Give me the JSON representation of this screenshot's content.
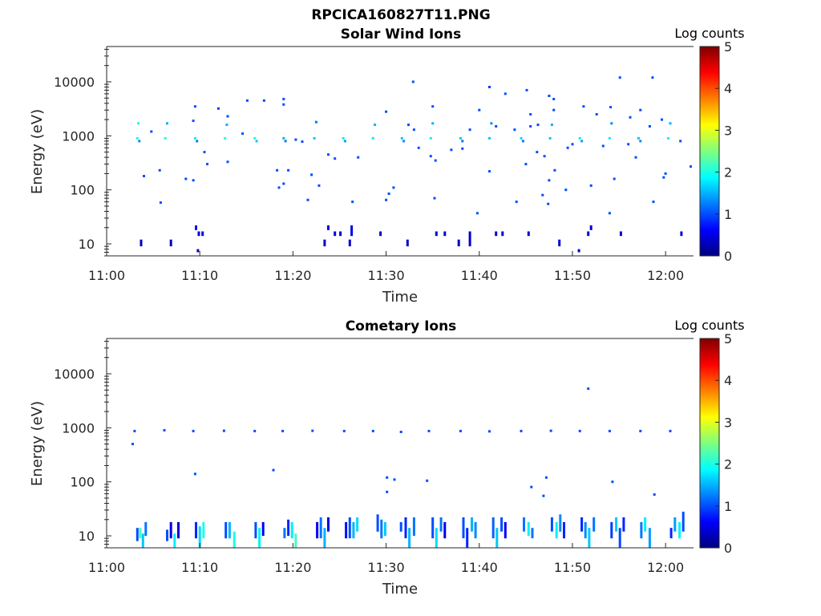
{
  "figure_title": "RPCICA160827T11.PNG",
  "colormap": [
    "#00007f",
    "#0000ff",
    "#007fff",
    "#00ffff",
    "#7fff7f",
    "#ffff00",
    "#ff7f00",
    "#ff0000",
    "#7f0000"
  ],
  "chart_data": [
    {
      "type": "heatmap",
      "title": "Solar Wind Ions",
      "xlabel": "Time",
      "ylabel": "Energy (eV)",
      "colorbar_label": "Log counts",
      "xticks": [
        "11:00",
        "11:10",
        "11:20",
        "11:30",
        "11:40",
        "11:50",
        "12:00"
      ],
      "x_range_minutes": [
        0,
        63
      ],
      "yscale": "log",
      "yticks": [
        "10",
        "100",
        "1000",
        "10000"
      ],
      "ylim": [
        6,
        45000
      ],
      "clim": [
        0,
        5
      ],
      "cticks": [
        "0",
        "1",
        "2",
        "3",
        "4",
        "5"
      ],
      "points": [
        [
          3.3,
          900,
          2.0
        ],
        [
          3.5,
          800,
          1.3
        ],
        [
          3.4,
          1700,
          2.0
        ],
        [
          6.3,
          900,
          2.0
        ],
        [
          6.5,
          1700,
          1.5
        ],
        [
          9.5,
          900,
          1.8
        ],
        [
          9.7,
          800,
          1.2
        ],
        [
          12.7,
          900,
          2.0
        ],
        [
          12.9,
          1600,
          1.5
        ],
        [
          15.9,
          900,
          2.0
        ],
        [
          16.1,
          800,
          1.6
        ],
        [
          19.0,
          900,
          1.5
        ],
        [
          19.2,
          800,
          1.2
        ],
        [
          22.3,
          900,
          1.6
        ],
        [
          22.5,
          1800,
          1.2
        ],
        [
          25.4,
          900,
          1.8
        ],
        [
          25.6,
          800,
          1.4
        ],
        [
          28.6,
          900,
          1.8
        ],
        [
          28.8,
          1600,
          1.5
        ],
        [
          31.7,
          900,
          1.6
        ],
        [
          31.9,
          800,
          1.3
        ],
        [
          34.8,
          900,
          1.8
        ],
        [
          35.0,
          1700,
          1.5
        ],
        [
          38.0,
          900,
          1.6
        ],
        [
          38.2,
          800,
          1.2
        ],
        [
          41.1,
          900,
          1.6
        ],
        [
          41.3,
          1700,
          1.3
        ],
        [
          44.5,
          900,
          1.7
        ],
        [
          44.7,
          800,
          1.2
        ],
        [
          47.6,
          900,
          1.6
        ],
        [
          47.8,
          1600,
          1.5
        ],
        [
          50.8,
          900,
          1.8
        ],
        [
          51.0,
          800,
          1.4
        ],
        [
          54.0,
          900,
          1.8
        ],
        [
          54.2,
          1700,
          1.3
        ],
        [
          57.1,
          900,
          1.6
        ],
        [
          57.3,
          800,
          1.3
        ],
        [
          60.3,
          900,
          1.8
        ],
        [
          60.5,
          1700,
          1.5
        ],
        [
          9.5,
          3500,
          1.0
        ],
        [
          9.3,
          1900,
          1.0
        ],
        [
          12.0,
          3200,
          0.9
        ],
        [
          15.1,
          4500,
          1.0
        ],
        [
          16.9,
          4500,
          1.0
        ],
        [
          19.0,
          4800,
          1.0
        ],
        [
          19.0,
          3800,
          1.0
        ],
        [
          30.0,
          2800,
          1.0
        ],
        [
          32.9,
          10000,
          1.0
        ],
        [
          35.0,
          3500,
          1.0
        ],
        [
          41.1,
          8000,
          0.9
        ],
        [
          45.1,
          7000,
          1.0
        ],
        [
          47.5,
          5500,
          1.0
        ],
        [
          48.0,
          4800,
          1.0
        ],
        [
          55.1,
          12000,
          1.0
        ],
        [
          57.3,
          3000,
          1.0
        ],
        [
          58.6,
          12000,
          1.0
        ],
        [
          59.6,
          2000,
          1.0
        ],
        [
          4.0,
          180,
          1.0
        ],
        [
          4.8,
          1200,
          1.0
        ],
        [
          5.7,
          230,
          1.0
        ],
        [
          5.8,
          58,
          1.0
        ],
        [
          8.5,
          160,
          1.0
        ],
        [
          9.3,
          150,
          1.0
        ],
        [
          10.5,
          500,
          1.0
        ],
        [
          10.8,
          300,
          1.0
        ],
        [
          13.0,
          330,
          1.0
        ],
        [
          13.0,
          2300,
          1.0
        ],
        [
          14.6,
          1100,
          1.0
        ],
        [
          18.3,
          230,
          1.0
        ],
        [
          18.5,
          110,
          1.0
        ],
        [
          19.0,
          130,
          1.0
        ],
        [
          19.5,
          230,
          1.0
        ],
        [
          20.3,
          850,
          1.0
        ],
        [
          21.0,
          780,
          1.0
        ],
        [
          21.6,
          65,
          1.0
        ],
        [
          22.0,
          190,
          1.0
        ],
        [
          22.8,
          120,
          1.0
        ],
        [
          23.8,
          450,
          1.0
        ],
        [
          24.5,
          380,
          1.0
        ],
        [
          26.4,
          60,
          1.0
        ],
        [
          27.0,
          400,
          1.0
        ],
        [
          30.0,
          65,
          1.0
        ],
        [
          30.3,
          85,
          1.0
        ],
        [
          30.8,
          110,
          1.0
        ],
        [
          32.4,
          1600,
          1.0
        ],
        [
          33.0,
          1300,
          1.0
        ],
        [
          33.5,
          600,
          1.0
        ],
        [
          34.8,
          420,
          1.0
        ],
        [
          35.3,
          350,
          1.0
        ],
        [
          35.2,
          70,
          1.0
        ],
        [
          37.0,
          550,
          1.0
        ],
        [
          38.2,
          580,
          1.0
        ],
        [
          39.0,
          1300,
          1.0
        ],
        [
          40.0,
          3000,
          1.0
        ],
        [
          39.8,
          37,
          1.0
        ],
        [
          41.1,
          220,
          1.0
        ],
        [
          41.8,
          1500,
          1.0
        ],
        [
          42.8,
          6000,
          1.0
        ],
        [
          43.8,
          1300,
          1.0
        ],
        [
          44.0,
          60,
          1.0
        ],
        [
          45.0,
          300,
          1.0
        ],
        [
          45.5,
          2500,
          1.0
        ],
        [
          45.5,
          1500,
          1.0
        ],
        [
          46.3,
          1600,
          1.0
        ],
        [
          46.2,
          500,
          1.0
        ],
        [
          46.8,
          80,
          1.0
        ],
        [
          47.0,
          420,
          1.0
        ],
        [
          47.4,
          55,
          1.0
        ],
        [
          47.5,
          150,
          1.0
        ],
        [
          48.0,
          3000,
          1.0
        ],
        [
          48.1,
          230,
          1.0
        ],
        [
          49.3,
          100,
          1.0
        ],
        [
          49.5,
          600,
          1.0
        ],
        [
          50.0,
          700,
          1.0
        ],
        [
          51.2,
          3500,
          1.0
        ],
        [
          52.0,
          120,
          1.0
        ],
        [
          52.6,
          2500,
          1.0
        ],
        [
          53.3,
          650,
          1.0
        ],
        [
          54.1,
          3400,
          1.0
        ],
        [
          54.0,
          37,
          1.0
        ],
        [
          54.5,
          160,
          1.0
        ],
        [
          56.0,
          700,
          1.0
        ],
        [
          56.2,
          2200,
          1.0
        ],
        [
          56.8,
          400,
          1.0
        ],
        [
          58.3,
          1500,
          1.0
        ],
        [
          58.7,
          60,
          1.0
        ],
        [
          59.8,
          170,
          1.0
        ],
        [
          60.0,
          200,
          1.0
        ],
        [
          61.6,
          800,
          1.0
        ],
        [
          62.7,
          270,
          1.0
        ]
      ],
      "bars": [
        [
          3.7,
          9,
          12,
          0.3
        ],
        [
          6.9,
          9,
          12,
          0.3
        ],
        [
          9.8,
          7,
          8,
          0.3
        ],
        [
          9.6,
          18,
          22,
          0.7
        ],
        [
          9.9,
          14,
          17,
          0.5
        ],
        [
          10.3,
          14,
          17,
          0.5
        ],
        [
          23.4,
          9,
          12,
          0.4
        ],
        [
          23.8,
          18,
          22,
          0.5
        ],
        [
          24.5,
          14,
          17,
          0.5
        ],
        [
          25.1,
          14,
          17,
          0.4
        ],
        [
          26.1,
          9,
          12,
          0.4
        ],
        [
          26.3,
          14,
          22,
          0.5
        ],
        [
          29.4,
          14,
          17,
          0.4
        ],
        [
          32.3,
          9,
          12,
          0.3
        ],
        [
          35.4,
          14,
          17,
          0.4
        ],
        [
          36.3,
          14,
          17,
          0.5
        ],
        [
          37.8,
          9,
          12,
          0.3
        ],
        [
          39.0,
          9,
          17,
          0.4
        ],
        [
          41.8,
          14,
          17,
          0.5
        ],
        [
          42.5,
          14,
          17,
          0.4
        ],
        [
          45.3,
          14,
          17,
          0.4
        ],
        [
          48.6,
          9,
          12,
          0.4
        ],
        [
          51.7,
          14,
          17,
          0.5
        ],
        [
          52.0,
          18,
          22,
          0.4
        ],
        [
          55.2,
          14,
          17,
          0.4
        ],
        [
          61.7,
          14,
          17,
          0.4
        ],
        [
          50.7,
          7,
          8,
          0.4
        ]
      ]
    },
    {
      "type": "heatmap",
      "title": "Cometary Ions",
      "xlabel": "Time",
      "ylabel": "Energy (eV)",
      "colorbar_label": "Log counts",
      "xticks": [
        "11:00",
        "11:10",
        "11:20",
        "11:30",
        "11:40",
        "11:50",
        "12:00"
      ],
      "x_range_minutes": [
        0,
        63
      ],
      "yscale": "log",
      "yticks": [
        "10",
        "100",
        "1000",
        "10000"
      ],
      "ylim": [
        6,
        45000
      ],
      "clim": [
        0,
        5
      ],
      "cticks": [
        "0",
        "1",
        "2",
        "3",
        "4",
        "5"
      ],
      "points": [
        [
          2.8,
          500,
          1.0
        ],
        [
          3.0,
          870,
          1.0
        ],
        [
          6.2,
          900,
          1.0
        ],
        [
          9.3,
          870,
          1.0
        ],
        [
          12.6,
          880,
          1.0
        ],
        [
          15.9,
          870,
          1.0
        ],
        [
          18.9,
          870,
          1.0
        ],
        [
          22.1,
          880,
          1.0
        ],
        [
          25.5,
          870,
          1.0
        ],
        [
          28.6,
          870,
          1.0
        ],
        [
          31.6,
          840,
          1.0
        ],
        [
          34.6,
          870,
          1.0
        ],
        [
          38.0,
          870,
          1.0
        ],
        [
          41.1,
          860,
          1.0
        ],
        [
          44.5,
          870,
          1.0
        ],
        [
          47.7,
          880,
          1.0
        ],
        [
          50.8,
          870,
          1.0
        ],
        [
          54.0,
          870,
          1.0
        ],
        [
          57.3,
          870,
          1.0
        ],
        [
          60.5,
          870,
          1.0
        ],
        [
          9.5,
          140,
          1.0
        ],
        [
          17.9,
          165,
          1.0
        ],
        [
          30.1,
          120,
          1.0
        ],
        [
          30.1,
          65,
          1.0
        ],
        [
          30.9,
          110,
          1.0
        ],
        [
          34.4,
          105,
          1.0
        ],
        [
          45.6,
          80,
          1.0
        ],
        [
          46.9,
          55,
          1.0
        ],
        [
          47.2,
          120,
          1.0
        ],
        [
          51.7,
          5300,
          1.0
        ],
        [
          54.3,
          100,
          1.0
        ],
        [
          58.8,
          58,
          1.0
        ]
      ],
      "bars": [
        [
          3.3,
          8,
          14,
          1.0
        ],
        [
          3.6,
          9,
          14,
          2.2
        ],
        [
          3.9,
          6,
          11,
          1.6
        ],
        [
          4.2,
          10,
          18,
          1.2
        ],
        [
          6.5,
          8,
          13,
          1.0
        ],
        [
          6.9,
          9,
          18,
          0.5
        ],
        [
          7.3,
          6,
          11,
          1.8
        ],
        [
          7.7,
          9,
          18,
          0.4
        ],
        [
          9.6,
          9,
          18,
          0.8
        ],
        [
          10.0,
          6,
          15,
          1.7
        ],
        [
          10.4,
          9,
          18,
          2.0
        ],
        [
          12.8,
          9,
          18,
          1.0
        ],
        [
          13.2,
          9,
          18,
          1.5
        ],
        [
          13.7,
          6,
          12,
          2.0
        ],
        [
          16.0,
          9,
          18,
          1.0
        ],
        [
          16.4,
          6,
          14,
          1.8
        ],
        [
          16.8,
          10,
          18,
          0.6
        ],
        [
          19.1,
          9,
          14,
          1.2
        ],
        [
          19.5,
          10,
          20,
          0.8
        ],
        [
          19.9,
          9,
          18,
          1.8
        ],
        [
          20.3,
          6,
          11,
          2.2
        ],
        [
          22.6,
          9,
          18,
          0.6
        ],
        [
          23.0,
          9,
          22,
          1.2
        ],
        [
          23.4,
          6,
          14,
          1.5
        ],
        [
          23.8,
          12,
          22,
          0.5
        ],
        [
          25.7,
          9,
          18,
          0.7
        ],
        [
          26.1,
          9,
          22,
          1.0
        ],
        [
          26.5,
          9,
          18,
          1.5
        ],
        [
          26.9,
          12,
          22,
          1.7
        ],
        [
          29.1,
          12,
          25,
          1.0
        ],
        [
          29.5,
          9,
          20,
          1.2
        ],
        [
          29.9,
          10,
          18,
          1.6
        ],
        [
          31.6,
          12,
          18,
          1.0
        ],
        [
          32.1,
          9,
          22,
          0.8
        ],
        [
          32.5,
          6,
          14,
          1.5
        ],
        [
          33.0,
          10,
          22,
          1.2
        ],
        [
          35.0,
          9,
          22,
          1.0
        ],
        [
          35.4,
          6,
          14,
          1.7
        ],
        [
          35.9,
          12,
          22,
          1.2
        ],
        [
          36.3,
          9,
          18,
          0.5
        ],
        [
          38.3,
          9,
          22,
          1.0
        ],
        [
          38.7,
          6,
          14,
          0.8
        ],
        [
          39.2,
          12,
          22,
          1.5
        ],
        [
          39.6,
          9,
          18,
          1.3
        ],
        [
          41.5,
          9,
          22,
          1.1
        ],
        [
          41.9,
          6,
          14,
          1.6
        ],
        [
          42.4,
          12,
          22,
          1.0
        ],
        [
          42.8,
          9,
          18,
          0.6
        ],
        [
          44.8,
          12,
          22,
          1.2
        ],
        [
          45.3,
          10,
          18,
          1.8
        ],
        [
          45.7,
          9,
          14,
          1.2
        ],
        [
          47.8,
          12,
          22,
          1.0
        ],
        [
          48.3,
          9,
          18,
          1.8
        ],
        [
          48.7,
          12,
          25,
          1.3
        ],
        [
          49.1,
          9,
          18,
          0.8
        ],
        [
          51.0,
          12,
          22,
          0.8
        ],
        [
          51.4,
          9,
          18,
          1.3
        ],
        [
          51.8,
          6,
          14,
          1.6
        ],
        [
          52.3,
          12,
          22,
          1.2
        ],
        [
          54.2,
          9,
          18,
          0.9
        ],
        [
          54.7,
          12,
          22,
          1.6
        ],
        [
          55.1,
          6,
          14,
          1.0
        ],
        [
          55.5,
          12,
          22,
          0.8
        ],
        [
          57.4,
          9,
          18,
          1.2
        ],
        [
          57.8,
          12,
          22,
          1.8
        ],
        [
          58.3,
          6,
          14,
          1.4
        ],
        [
          60.6,
          9,
          14,
          0.8
        ],
        [
          61.0,
          12,
          22,
          1.4
        ],
        [
          61.5,
          9,
          18,
          1.8
        ],
        [
          61.9,
          12,
          28,
          1.0
        ]
      ]
    }
  ]
}
